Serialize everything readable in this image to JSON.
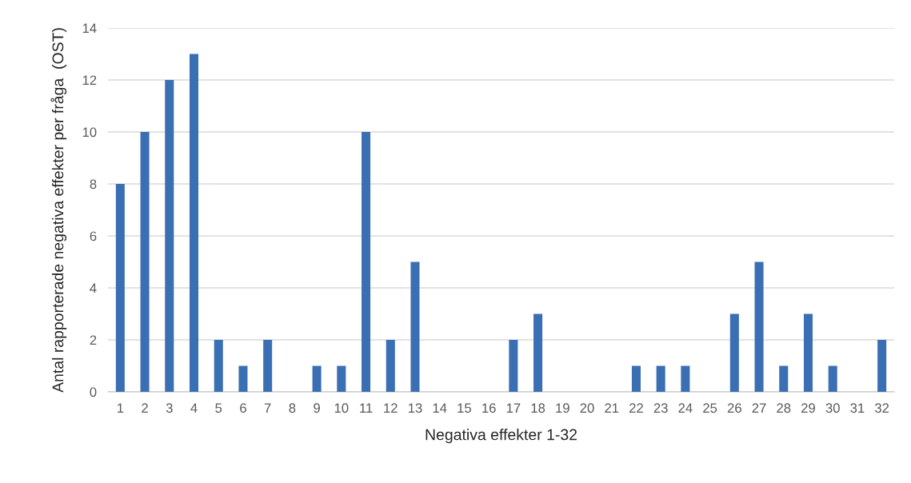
{
  "chart_data": {
    "type": "bar",
    "categories": [
      "1",
      "2",
      "3",
      "4",
      "5",
      "6",
      "7",
      "8",
      "9",
      "10",
      "11",
      "12",
      "13",
      "14",
      "15",
      "16",
      "17",
      "18",
      "19",
      "20",
      "21",
      "22",
      "23",
      "24",
      "25",
      "26",
      "27",
      "28",
      "29",
      "30",
      "31",
      "32"
    ],
    "values": [
      8,
      10,
      12,
      13,
      2,
      1,
      2,
      0,
      1,
      1,
      10,
      2,
      5,
      0,
      0,
      0,
      2,
      3,
      0,
      0,
      0,
      1,
      1,
      1,
      0,
      3,
      5,
      1,
      3,
      1,
      0,
      2
    ],
    "color": "#3b6fb3",
    "xlabel": "Negativa effekter 1-32",
    "ylabel": "Antal rapporterade negativa effekter per fråga  (OST)",
    "ylim": [
      0,
      14
    ],
    "yticks": [
      0,
      2,
      4,
      6,
      8,
      10,
      12,
      14
    ],
    "grid": "y"
  }
}
